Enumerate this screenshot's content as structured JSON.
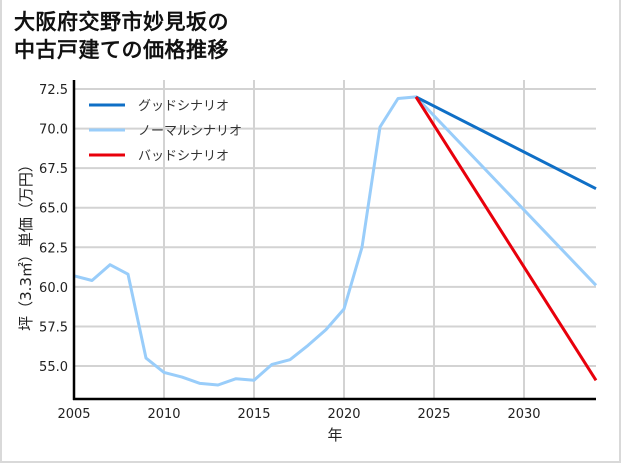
{
  "title_line1": "大阪府交野市妙見坂の",
  "title_line2": "中古戸建ての価格推移",
  "chart_data": {
    "type": "line",
    "title": "大阪府交野市妙見坂の中古戸建ての価格推移",
    "xlabel": "年",
    "ylabel": "坪（3.3㎡）単価（万円）",
    "xlim": [
      2005,
      2034
    ],
    "ylim": [
      53.0,
      72.8
    ],
    "xticks": [
      2005,
      2010,
      2015,
      2020,
      2025,
      2030
    ],
    "yticks": [
      55.0,
      57.5,
      60.0,
      62.5,
      65.0,
      67.5,
      70.0,
      72.5
    ],
    "xtick_labels": [
      "2005",
      "2010",
      "2015",
      "2020",
      "2025",
      "2030"
    ],
    "ytick_labels": [
      "55.0",
      "57.5",
      "60.0",
      "62.5",
      "65.0",
      "67.5",
      "70.0",
      "72.5"
    ],
    "grid": true,
    "legend_position": "upper left",
    "series": [
      {
        "name": "グッドシナリオ",
        "color": "#0f6fc6",
        "x": [
          2024,
          2034
        ],
        "y": [
          72.0,
          66.2
        ]
      },
      {
        "name": "ノーマルシナリオ",
        "color": "#99cdfa",
        "x": [
          2005,
          2006,
          2007,
          2008,
          2009,
          2010,
          2011,
          2012,
          2013,
          2014,
          2015,
          2016,
          2017,
          2018,
          2019,
          2020,
          2021,
          2022,
          2023,
          2024,
          2034
        ],
        "y": [
          60.7,
          60.4,
          61.4,
          60.8,
          55.5,
          54.6,
          54.3,
          53.9,
          53.8,
          54.2,
          54.1,
          55.1,
          55.4,
          56.3,
          57.3,
          58.6,
          62.5,
          70.1,
          71.9,
          72.0,
          60.1
        ]
      },
      {
        "name": "バッドシナリオ",
        "color": "#e8000b",
        "x": [
          2024,
          2034
        ],
        "y": [
          72.0,
          54.1
        ]
      }
    ]
  }
}
